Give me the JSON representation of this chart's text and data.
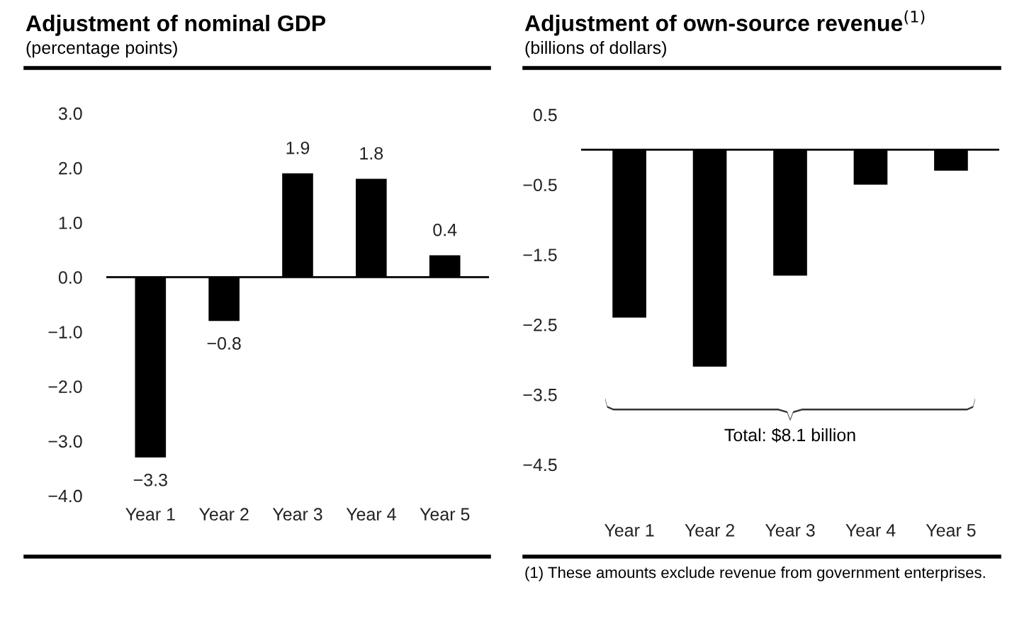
{
  "chart_data": [
    {
      "type": "bar",
      "title": "Adjustment of nominal GDP",
      "subtitle": "(percentage points)",
      "categories": [
        "Year 1",
        "Year 2",
        "Year 3",
        "Year 4",
        "Year 5"
      ],
      "values": [
        -3.3,
        -0.8,
        1.9,
        1.8,
        0.4
      ],
      "color": "#000000",
      "data_labels": true,
      "ylim": [
        -4.0,
        3.0
      ],
      "yticks": [
        {
          "value": -4,
          "label": "−4.0"
        },
        {
          "value": -3,
          "label": "−3.0"
        },
        {
          "value": -2,
          "label": "−2.0"
        },
        {
          "value": -1,
          "label": "−1.0"
        },
        {
          "value": 0,
          "label": "0.0"
        },
        {
          "value": 1,
          "label": "1.0"
        },
        {
          "value": 2,
          "label": "2.0"
        },
        {
          "value": 3,
          "label": "3.0"
        }
      ],
      "ref_lines": [
        {
          "axis": "y",
          "value": 0,
          "color": "#000000"
        }
      ],
      "grid": false,
      "legend": false
    },
    {
      "type": "bar",
      "title": "Adjustment of own-source revenue$^{(1)}$",
      "subtitle": "(billions of dollars)",
      "categories": [
        "Year 1",
        "Year 2",
        "Year 3",
        "Year 4",
        "Year 5"
      ],
      "values": [
        -2.4,
        -3.1,
        -1.8,
        -0.5,
        -0.3
      ],
      "color": "#000000",
      "ylim": [
        -4.5,
        0.5
      ],
      "yticks": [
        {
          "value": -4.5,
          "label": "−4.5"
        },
        {
          "value": -3.5,
          "label": "−3.5"
        },
        {
          "value": -2.5,
          "label": "−2.5"
        },
        {
          "value": -1.5,
          "label": "−1.5"
        },
        {
          "value": -0.5,
          "label": "−0.5"
        },
        0.5
      ],
      "ref_lines": [
        {
          "axis": "y",
          "value": 0,
          "color": "#000000"
        }
      ],
      "grid": false,
      "legend": false,
      "annotations": [
        "Total: $8.1 billion",
        "(1) These amounts exclude revenue from government enterprises."
      ]
    }
  ]
}
